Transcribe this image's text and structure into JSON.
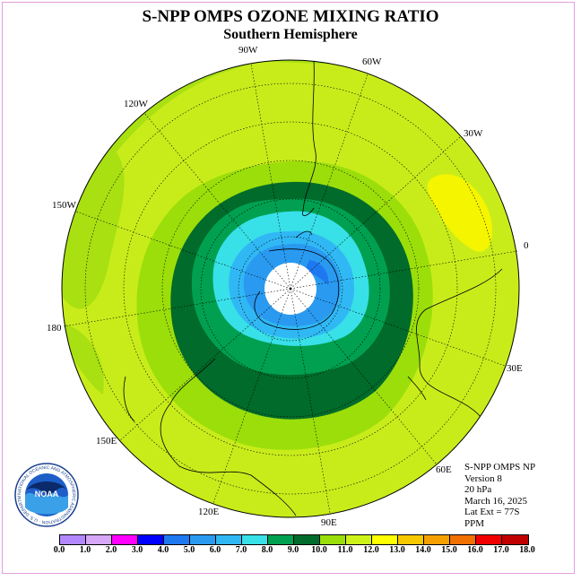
{
  "title": "S-NPP OMPS OZONE MIXING RATIO",
  "subtitle": "Southern Hemisphere",
  "longitude_labels": [
    "90W",
    "60W",
    "30W",
    "0",
    "30E",
    "60E",
    "90E",
    "120E",
    "150E",
    "180",
    "150W",
    "120W"
  ],
  "info": {
    "instrument": "S-NPP OMPS NP",
    "version": "Version 8",
    "level": "20 hPa",
    "date": "March 16, 2025",
    "lat_ext": "Lat Ext = 77S",
    "units": "PPM"
  },
  "logo": {
    "text": "NOAA",
    "ring_text": "NATIONAL OCEANIC AND ATMOSPHERIC ADMINISTRATION · U.S. DEPARTMENT OF COMMERCE"
  },
  "colorbar": {
    "ticks": [
      "0.0",
      "1.0",
      "2.0",
      "3.0",
      "4.0",
      "5.0",
      "6.0",
      "7.0",
      "8.0",
      "9.0",
      "10.0",
      "11.0",
      "12.0",
      "13.0",
      "14.0",
      "15.0",
      "16.0",
      "17.0",
      "18.0"
    ],
    "colors": [
      "#b388ff",
      "#d8a8f8",
      "#ff00ff",
      "#0000ff",
      "#1e78f0",
      "#2a9af0",
      "#30b8f5",
      "#38e0e8",
      "#00a050",
      "#006b2a",
      "#9bde0a",
      "#cdf21a",
      "#ffff00",
      "#f5c800",
      "#f5a000",
      "#f07000",
      "#f00000",
      "#c00000",
      "#a06838"
    ],
    "min": 0.0,
    "max": 18.0
  },
  "colors": {
    "background_field": "#c8ec1a",
    "pole_mask": "#ffffff"
  }
}
